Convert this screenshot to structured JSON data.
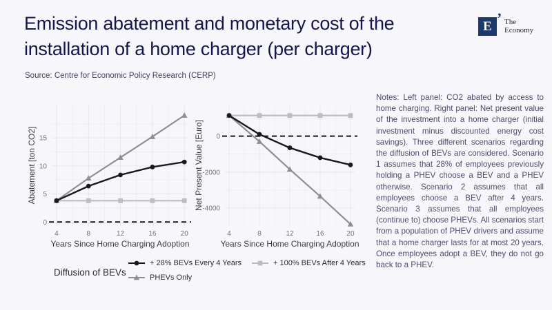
{
  "header": {
    "title_line1": "Emission abatement and monetary cost of the",
    "title_line2": "installation of a home charger (per charger)",
    "source": "Source: Centre for Economic Policy Research (CERP)"
  },
  "logo": {
    "letter": "E",
    "tick_glyph": "’",
    "name_line1": "The",
    "name_line2": "Economy",
    "box_color": "#1e3a6b"
  },
  "notes": "Notes: Left panel: CO2 abated by access to home charging. Right panel: Net present value of the investment into a home charger (initial investment minus discounted energy cost savings). Three different scenarios regarding the diffusion of BEVs are considered. Scenario 1 assumes that 28% of employees previously holding a PHEV choose a BEV and a PHEV otherwise. Scenario 2 assumes that all employees choose a BEV after 4 years. Scenario 3 assumes that all employees (continue to) choose PHEVs. All scenarios start from a population of PHEV drivers and assume that a home charger lasts for at most 20 years. Once employees adopt a BEV, they do not go back to a PHEV.",
  "legend": {
    "group_title": "Diffusion of BEVs",
    "items": [
      {
        "label": "+ 28% BEVs Every 4 Years",
        "marker": "circle",
        "color": "#1a1a1a"
      },
      {
        "label": "+ 100% BEVs After 4 Years",
        "marker": "square",
        "color": "#bdbdc1"
      },
      {
        "label": "PHEVs Only",
        "marker": "triangle",
        "color": "#8f8f93"
      }
    ]
  },
  "chart_data": [
    {
      "type": "line",
      "xlabel": "Years Since Home Charging Adoption",
      "ylabel": "Abatement [ton CO2]",
      "x": [
        4,
        8,
        12,
        16,
        20
      ],
      "xlim": [
        3.4,
        20.5
      ],
      "ylim": [
        -0.7,
        20.9
      ],
      "yticks": [
        0,
        5,
        10,
        15
      ],
      "grid": true,
      "zero_line_dashed": true,
      "legend_position": "bottom",
      "series": [
        {
          "name": "+ 100% BEVs After 4 Years",
          "marker": "square",
          "color": "#bdbdc1",
          "values": [
            3.8,
            3.8,
            3.8,
            3.8,
            3.8
          ]
        },
        {
          "name": "PHEVs Only",
          "marker": "triangle",
          "color": "#8f8f93",
          "values": [
            3.8,
            7.8,
            11.5,
            15.2,
            19.0
          ]
        },
        {
          "name": "+ 28% BEVs Every 4 Years",
          "marker": "circle",
          "color": "#1a1a1a",
          "values": [
            3.8,
            6.4,
            8.4,
            9.8,
            10.7
          ]
        }
      ]
    },
    {
      "type": "line",
      "xlabel": "Years Since Home Charging Adoption",
      "ylabel": "Net Present Value [Euro]",
      "x": [
        4,
        8,
        12,
        16,
        20
      ],
      "xlim": [
        3.45,
        20.55
      ],
      "ylim": [
        -5000,
        1750
      ],
      "yticks": [
        0,
        -2000,
        -4000
      ],
      "grid": true,
      "zero_line_dashed": true,
      "legend_position": "bottom",
      "series": [
        {
          "name": "+ 100% BEVs After 4 Years",
          "marker": "square",
          "color": "#bdbdc1",
          "values": [
            1150,
            1150,
            1150,
            1150,
            1150
          ]
        },
        {
          "name": "PHEVs Only",
          "marker": "triangle",
          "color": "#8f8f93",
          "values": [
            1150,
            -300,
            -1850,
            -3350,
            -4900
          ]
        },
        {
          "name": "+ 28% BEVs Every 4 Years",
          "marker": "circle",
          "color": "#1a1a1a",
          "values": [
            1150,
            100,
            -650,
            -1200,
            -1600
          ]
        }
      ]
    }
  ]
}
